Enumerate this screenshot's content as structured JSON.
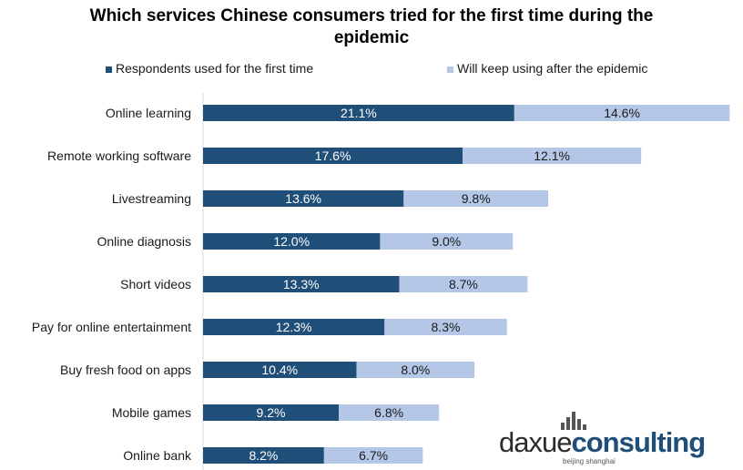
{
  "title_line1": "Which services Chinese consumers tried for the first time during the",
  "title_line2": "epidemic",
  "colors": {
    "first_time": "#1f4e79",
    "keep_using": "#b4c7e7",
    "label_on_dark": "#ffffff",
    "label_on_light": "#1a1a1a"
  },
  "logo": {
    "text_main": "daxue",
    "text_accent": "consulting",
    "subtitle": "beijing shanghai"
  },
  "chart_data": {
    "type": "bar",
    "orientation": "horizontal",
    "stacked": true,
    "grid": false,
    "legend_position": "top",
    "categories": [
      "Online learning",
      "Remote working software",
      "Livestreaming",
      "Online diagnosis",
      "Short videos",
      "Pay for online entertainment",
      "Buy fresh food on apps",
      "Mobile games",
      "Online bank"
    ],
    "series": [
      {
        "name": "Respondents used for the first time",
        "values": [
          21.1,
          17.6,
          13.6,
          12.0,
          13.3,
          12.3,
          10.4,
          9.2,
          8.2
        ],
        "labels": [
          "21.1%",
          "17.6%",
          "13.6%",
          "12.0%",
          "13.3%",
          "12.3%",
          "10.4%",
          "9.2%",
          "8.2%"
        ]
      },
      {
        "name": "Will keep using after the epidemic",
        "values": [
          14.6,
          12.1,
          9.8,
          9.0,
          8.7,
          8.3,
          8.0,
          6.8,
          6.7
        ],
        "labels": [
          "14.6%",
          "12.1%",
          "9.8%",
          "9.0%",
          "8.7%",
          "8.3%",
          "8.0%",
          "6.8%",
          "6.7%"
        ]
      }
    ]
  }
}
